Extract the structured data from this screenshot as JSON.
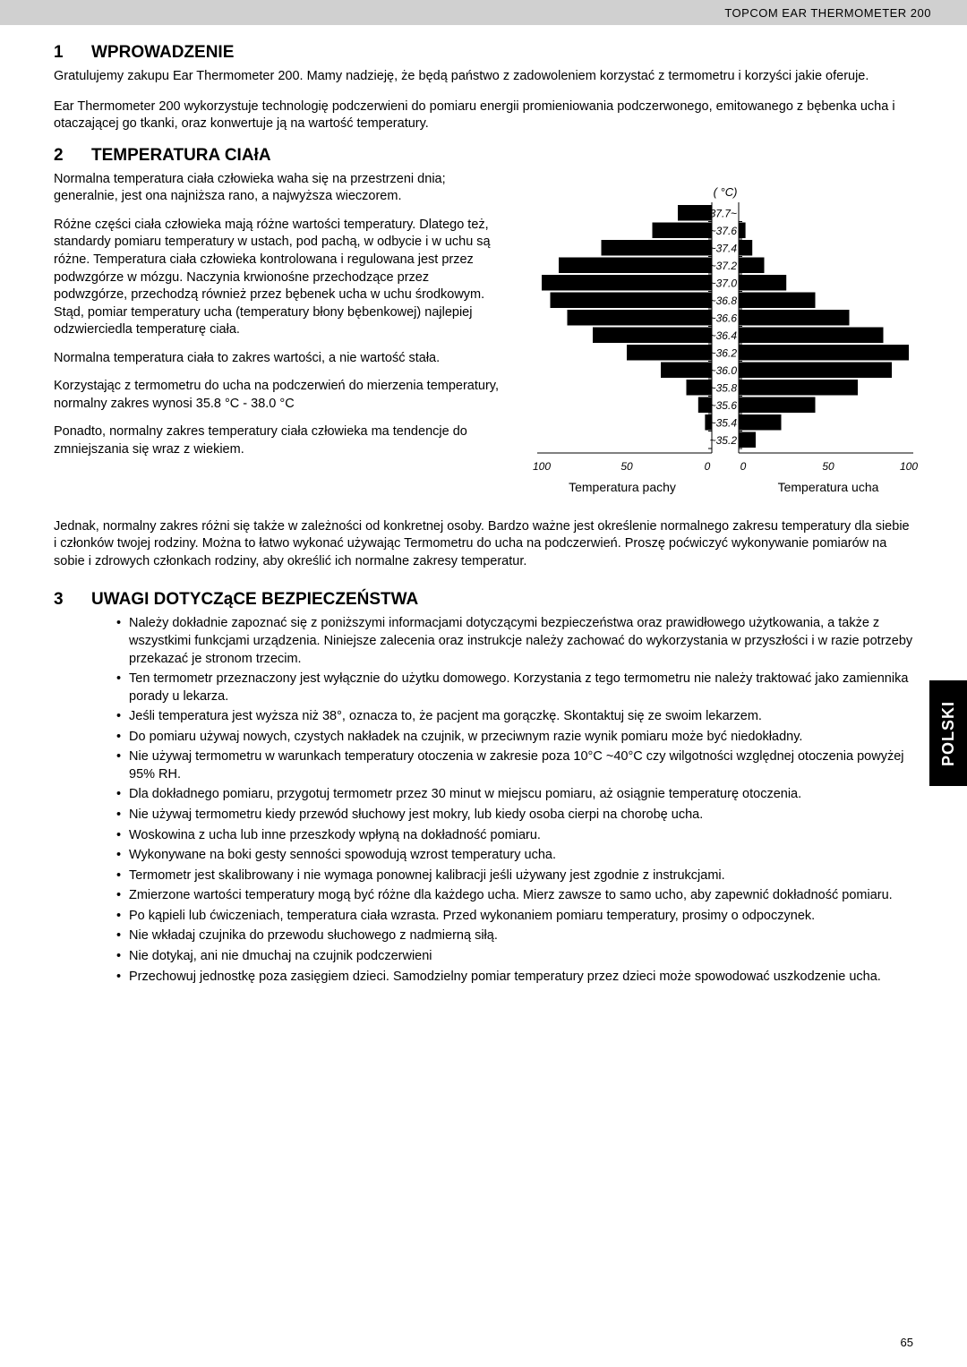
{
  "header": {
    "product": "TOPCOM EAR THERMOMETER 200"
  },
  "side_tab": "POLSKI",
  "page_number": "65",
  "s1": {
    "num": "1",
    "title": "WPROWADZENIE",
    "p1": "Gratulujemy zakupu Ear Thermometer 200. Mamy nadzieję, że będą państwo z zadowoleniem korzystać z termometru i korzyści jakie oferuje.",
    "p2": "Ear Thermometer 200 wykorzystuje technologię podczerwieni do pomiaru energii promieniowania podczerwonego, emitowanego z bębenka ucha i otaczającej go tkanki, oraz konwertuje ją na wartość temperatury."
  },
  "s2": {
    "num": "2",
    "title": "TEMPERATURA CIAłA",
    "p1": "Normalna temperatura ciała człowieka waha się na przestrzeni dnia; generalnie, jest ona najniższa rano, a najwyższa wieczorem.",
    "p2": "Różne części ciała człowieka mają różne wartości temperatury. Dlatego też, standardy pomiaru temperatury w ustach, pod pachą, w odbycie i w uchu są różne. Temperatura ciała człowieka kontrolowana i regulowana jest przez podwzgórze w mózgu. Naczynia krwionośne przechodzące przez podwzgórze, przechodzą również przez bębenek ucha w uchu środkowym. Stąd, pomiar temperatury ucha (temperatury błony bębenkowej) najlepiej odzwierciedla temperaturę ciała.",
    "p3": "Normalna temperatura ciała to zakres wartości, a nie wartość stała.",
    "p4": "Korzystając z termometru do ucha na podczerwień do mierzenia temperatury, normalny zakres wynosi 35.8 °C - 38.0 °C",
    "p5": "Ponadto, normalny zakres temperatury ciała człowieka ma tendencje do zmniejszania się wraz z wiekiem.",
    "p6": "Jednak, normalny zakres różni się także w zależności od konkretnej osoby. Bardzo ważne jest określenie normalnego zakresu temperatury dla siebie i członków twojej rodziny. Można to łatwo wykonać używając Termometru do ucha na podczerwień. Proszę poćwiczyć wykonywanie pomiarów na sobie i zdrowych członkach rodziny, aby określić ich normalne zakresy temperatur."
  },
  "chart": {
    "unit": "( °C)",
    "y_labels": [
      "37.7~",
      "~37.6",
      "~37.4",
      "~37.2",
      "~37.0",
      "~36.8",
      "~36.6",
      "~36.4",
      "~36.2",
      "~36.0",
      "~35.8",
      "~35.6",
      "~35.4",
      "~35.2"
    ],
    "x_left": [
      "100",
      "50",
      "0"
    ],
    "x_right": [
      "0",
      "50",
      "100"
    ],
    "bottom_left": "Temperatura pachy",
    "bottom_right": "Temperatura ucha",
    "left_bars": [
      20,
      35,
      65,
      90,
      100,
      95,
      85,
      70,
      50,
      30,
      15,
      8,
      4,
      0
    ],
    "right_bars": [
      0,
      4,
      8,
      15,
      28,
      45,
      65,
      85,
      100,
      90,
      70,
      45,
      25,
      10
    ],
    "bar_color": "#000000",
    "axis_color": "#000000",
    "bg": "#ffffff"
  },
  "s3": {
    "num": "3",
    "title": "UWAGI DOTYCZąCE BEZPIECZEŃSTWA",
    "items": [
      "Należy dokładnie zapoznać się z poniższymi informacjami dotyczącymi bezpieczeństwa oraz prawidłowego użytkowania, a także z wszystkimi funkcjami urządzenia. Niniejsze zalecenia oraz instrukcje należy zachować do wykorzystania w przyszłości i w razie potrzeby przekazać je stronom trzecim.",
      "Ten termometr przeznaczony jest wyłącznie do użytku domowego. Korzystania z tego termometru nie należy traktować jako zamiennika porady u lekarza.",
      "Jeśli temperatura jest wyższa niż 38°, oznacza to, że pacjent ma gorączkę. Skontaktuj się ze swoim lekarzem.",
      "Do pomiaru używaj nowych, czystych nakładek na czujnik, w przeciwnym razie wynik pomiaru może być niedokładny.",
      "Nie używaj termometru w warunkach temperatury otoczenia w zakresie poza 10°C ~40°C czy wilgotności względnej otoczenia powyżej 95% RH.",
      "Dla dokładnego pomiaru, przygotuj termometr przez 30 minut w miejscu pomiaru, aż osiągnie temperaturę otoczenia.",
      "Nie używaj termometru kiedy przewód słuchowy jest mokry, lub kiedy osoba cierpi na chorobę ucha.",
      "Woskowina z ucha lub inne przeszkody wpłyną na dokładność pomiaru.",
      "Wykonywane na boki gesty senności spowodują wzrost temperatury ucha.",
      "Termometr jest skalibrowany i nie wymaga ponownej kalibracji jeśli używany jest zgodnie z instrukcjami.",
      "Zmierzone wartości temperatury mogą być różne dla każdego ucha. Mierz zawsze to samo ucho, aby zapewnić dokładność pomiaru.",
      "Po kąpieli lub ćwiczeniach, temperatura ciała wzrasta. Przed wykonaniem pomiaru temperatury, prosimy o odpoczynek.",
      "Nie wkładaj czujnika do przewodu słuchowego z nadmierną siłą.",
      "Nie dotykaj, ani nie dmuchaj na czujnik podczerwieni",
      "Przechowuj jednostkę poza zasięgiem dzieci. Samodzielny pomiar temperatury przez dzieci może spowodować uszkodzenie ucha."
    ]
  }
}
